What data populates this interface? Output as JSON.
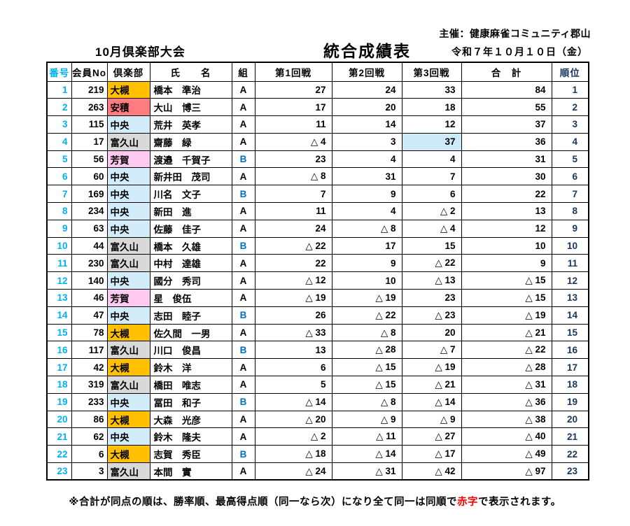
{
  "page": {
    "organizer": "主催：健康麻雀コミュニティ郡山",
    "date": "令和７年１０月１０日（金）",
    "event_title": "10月倶楽部大会",
    "report_title": "統合成績表",
    "footnote": {
      "pre": "※合計が同点の順は、勝率順、最高得点順（同一なら次）になり全て同一は同順で",
      "red_word": "赤字",
      "post": "で表示されます。"
    }
  },
  "colors": {
    "number_col_text": "#00B0F0",
    "rank_col_text": "#17365D",
    "group_b_text": "#0070C0",
    "negative_na": "#000000",
    "footnote_red": "#FF0000",
    "round3_highlight_bg": "#CDEAF8",
    "clubs": {
      "大槻": "#FFC000",
      "安積": "#FF7C80",
      "中央": "#D2ECFA",
      "富久山": "#D9D9D9",
      "芳賀": "#FFC9F0"
    }
  },
  "table": {
    "columns": [
      "番号",
      "会員No",
      "倶楽部",
      "氏　　名",
      "組",
      "第1回戦",
      "第2回戦",
      "第3回戦",
      "合　計",
      "順位"
    ],
    "rows": [
      {
        "no": "1",
        "member_no": "219",
        "club": "大槻",
        "name": "橋本　準治",
        "group": "A",
        "r1": "27",
        "r2": "24",
        "r3": "33",
        "total": "84",
        "rank": "1"
      },
      {
        "no": "2",
        "member_no": "263",
        "club": "安積",
        "name": "大山　博三",
        "group": "A",
        "r1": "17",
        "r2": "20",
        "r3": "18",
        "total": "55",
        "rank": "2"
      },
      {
        "no": "3",
        "member_no": "115",
        "club": "中央",
        "name": "荒井　英孝",
        "group": "A",
        "r1": "11",
        "r2": "14",
        "r3": "12",
        "total": "37",
        "rank": "3"
      },
      {
        "no": "4",
        "member_no": "17",
        "club": "富久山",
        "name": "齋藤　緑",
        "group": "A",
        "r1": "△ 4",
        "r2": "3",
        "r3": "37",
        "total": "36",
        "rank": "4",
        "r3_highlight": true
      },
      {
        "no": "5",
        "member_no": "56",
        "club": "芳賀",
        "name": "渡邉　千賀子",
        "group": "B",
        "r1": "23",
        "r2": "4",
        "r3": "4",
        "total": "31",
        "rank": "5"
      },
      {
        "no": "6",
        "member_no": "60",
        "club": "中央",
        "name": "新井田　茂司",
        "group": "A",
        "r1": "△ 8",
        "r2": "31",
        "r3": "7",
        "total": "30",
        "rank": "6"
      },
      {
        "no": "7",
        "member_no": "169",
        "club": "中央",
        "name": "川名　文子",
        "group": "B",
        "r1": "7",
        "r2": "9",
        "r3": "6",
        "total": "22",
        "rank": "7"
      },
      {
        "no": "8",
        "member_no": "234",
        "club": "中央",
        "name": "新田　進",
        "group": "A",
        "r1": "11",
        "r2": "4",
        "r3": "△ 2",
        "total": "13",
        "rank": "8"
      },
      {
        "no": "9",
        "member_no": "63",
        "club": "中央",
        "name": "佐藤　佳子",
        "group": "A",
        "r1": "24",
        "r2": "△ 8",
        "r3": "△ 4",
        "total": "12",
        "rank": "9"
      },
      {
        "no": "10",
        "member_no": "44",
        "club": "富久山",
        "name": "橋本　久雄",
        "group": "B",
        "r1": "△ 22",
        "r2": "17",
        "r3": "15",
        "total": "10",
        "rank": "10"
      },
      {
        "no": "11",
        "member_no": "230",
        "club": "富久山",
        "name": "中村　達雄",
        "group": "A",
        "r1": "22",
        "r2": "9",
        "r3": "△ 22",
        "total": "9",
        "rank": "11"
      },
      {
        "no": "12",
        "member_no": "140",
        "club": "中央",
        "name": "國分　秀司",
        "group": "A",
        "r1": "△ 12",
        "r2": "10",
        "r3": "△ 13",
        "total": "△ 15",
        "rank": "12"
      },
      {
        "no": "13",
        "member_no": "46",
        "club": "芳賀",
        "name": "星　俊伍",
        "group": "A",
        "r1": "△ 19",
        "r2": "△ 19",
        "r3": "23",
        "total": "△ 15",
        "rank": "13"
      },
      {
        "no": "14",
        "member_no": "47",
        "club": "中央",
        "name": "志田　睦子",
        "group": "B",
        "r1": "26",
        "r2": "△ 22",
        "r3": "△ 23",
        "total": "△ 19",
        "rank": "14"
      },
      {
        "no": "15",
        "member_no": "78",
        "club": "大槻",
        "name": "佐久間　一男",
        "group": "A",
        "r1": "△ 33",
        "r2": "△ 8",
        "r3": "20",
        "total": "△ 21",
        "rank": "15"
      },
      {
        "no": "16",
        "member_no": "117",
        "club": "富久山",
        "name": "川口　俊昌",
        "group": "B",
        "r1": "13",
        "r2": "△ 28",
        "r3": "△ 7",
        "total": "△ 22",
        "rank": "16"
      },
      {
        "no": "17",
        "member_no": "42",
        "club": "大槻",
        "name": "鈴木　洋",
        "group": "A",
        "r1": "6",
        "r2": "△ 15",
        "r3": "△ 19",
        "total": "△ 28",
        "rank": "17"
      },
      {
        "no": "18",
        "member_no": "319",
        "club": "富久山",
        "name": "橋田　唯志",
        "group": "A",
        "r1": "5",
        "r2": "△ 15",
        "r3": "△ 21",
        "total": "△ 31",
        "rank": "18"
      },
      {
        "no": "19",
        "member_no": "233",
        "club": "中央",
        "name": "冨田　和子",
        "group": "B",
        "r1": "△ 14",
        "r2": "△ 8",
        "r3": "△ 14",
        "total": "△ 36",
        "rank": "19"
      },
      {
        "no": "20",
        "member_no": "86",
        "club": "大槻",
        "name": "大森　光彦",
        "group": "A",
        "r1": "△ 20",
        "r2": "△ 9",
        "r3": "△ 9",
        "total": "△ 38",
        "rank": "20"
      },
      {
        "no": "21",
        "member_no": "62",
        "club": "中央",
        "name": "鈴木　隆夫",
        "group": "A",
        "r1": "△ 2",
        "r2": "△ 11",
        "r3": "△ 27",
        "total": "△ 40",
        "rank": "21"
      },
      {
        "no": "22",
        "member_no": "6",
        "club": "大槻",
        "name": "志賀　秀臣",
        "group": "B",
        "r1": "△ 18",
        "r2": "△ 14",
        "r3": "△ 17",
        "total": "△ 49",
        "rank": "22"
      },
      {
        "no": "23",
        "member_no": "3",
        "club": "富久山",
        "name": "本間　實",
        "group": "A",
        "r1": "△ 24",
        "r2": "△ 31",
        "r3": "△ 42",
        "total": "△ 97",
        "rank": "23"
      }
    ]
  }
}
